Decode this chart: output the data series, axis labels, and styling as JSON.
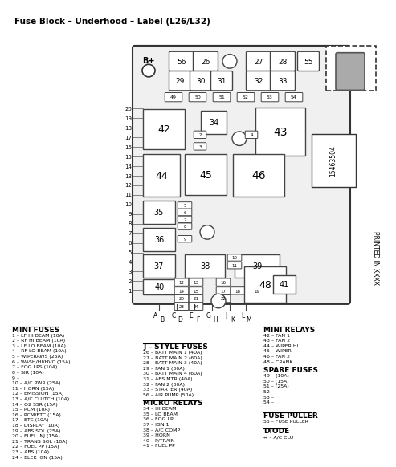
{
  "title": "Fuse Block – Underhood – Label (L26/L32)",
  "mini_fuses_text": [
    "MINI FUSES",
    "1 – LF HI BEAM (10A)",
    "2 – RF HI BEAM (10A)",
    "3 – LF LO BEAM (10A)",
    "4 – RF LO BEAM (10A)",
    "5 – WIPERAWS (25A)",
    "6 – WASH/HI/HVC (15A)",
    "7 – FOG LPS (10A)",
    "8 – SIR (10A)",
    "9 –",
    "10 – A/C PWR (25A)",
    "11 – HORN (15A)",
    "12 – EMISSION (15A)",
    "13 – A/C CLUTCH (10A)",
    "14 – O2 SSR (15A)",
    "15 – PCM (10A)",
    "16 – PCM/ETC (15A)",
    "17 – ETC (10A)",
    "18 – DISPLAY (10A)",
    "19 – ABS SOL (25A)",
    "20 – FUEL INJ (15A)",
    "21 – TRANS SOL (10A)",
    "22 – FUEL PP (15A)",
    "23 – ABS (10A)",
    "24 – ELEK IGN (15A)"
  ],
  "j_style_text": [
    "J – STYLE FUSES",
    "26 – BATT MAIN 1 (40A)",
    "27 – BATT MAIN 2 (60A)",
    "28 – BATT MAIN 3 (40A)",
    "29 – FAN 1 (30A)",
    "30 – BATT MAIN 4 (60A)",
    "31 – ABS MTR (40A)",
    "32 – FAN 2 (30A)",
    "33 – STARTER (40A)",
    "56 – AIR PUMP (50A)"
  ],
  "micro_relays_text": [
    "MICRO RELAYS",
    "34 – HI BEAM",
    "35 – LO BEAM",
    "36 – FOG LP",
    "37 – IGN 1",
    "38 – A/C COMP",
    "39 – HORN",
    "40 – P/TRAIN",
    "41 – FUEL PP"
  ],
  "mini_relays_text": [
    "MINI RELAYS",
    "42 – FAN 1",
    "43 – FAN 2",
    "44 – WIPER HI",
    "45 – WIPER",
    "46 – FAN 2",
    "48 – CRANK"
  ],
  "spare_fuses_text": [
    "SPARE FUSES",
    "49 – (10A)",
    "50 – (15A)",
    "51 – (25A)",
    "52 –",
    "53 –",
    "54 –"
  ],
  "fuse_puller_text": [
    "FUSE PULLER",
    "55 – FUSE PULLER"
  ],
  "diode_text": [
    "DIODE",
    "⇔ – A/C CLU"
  ],
  "part_number": "15463504",
  "printed_in": "PRINTED IN XXXX"
}
